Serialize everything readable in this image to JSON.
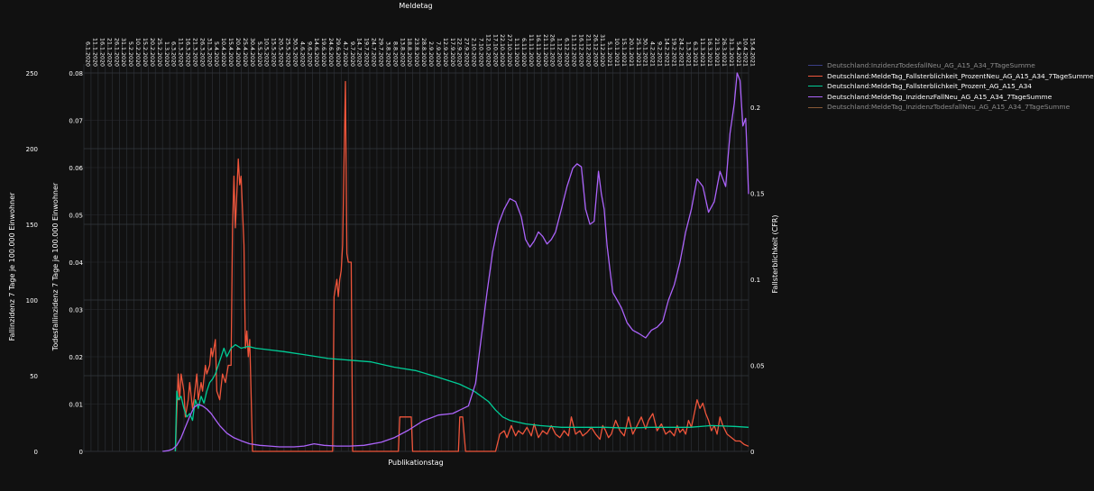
{
  "chart_data": {
    "type": "line",
    "title": "",
    "top_axis_label": "Meldetag",
    "xlabel": "Publikationstag",
    "ylabel_left_outer": "Fallinzidenz 7 Tage je 100.000 Einwohner",
    "ylabel_left_inner": "Todesfallinzidenz 7 Tage je 100.000 Einwohner",
    "ylabel_right": "Fallsterblichkeit (CFR)",
    "axes": {
      "y_left_outer": {
        "range": [
          0,
          250
        ],
        "ticks": [
          0,
          50,
          100,
          150,
          200,
          250
        ]
      },
      "y_left_inner": {
        "range": [
          0,
          0.08
        ],
        "ticks": [
          0,
          0.01,
          0.02,
          0.03,
          0.04,
          0.05,
          0.06,
          0.07,
          0.08
        ]
      },
      "y_right": {
        "range": [
          0,
          0.22
        ],
        "ticks": [
          0,
          0.05,
          0.1,
          0.15,
          0.2
        ],
        "tick_labels": [
          "0",
          "0.05",
          "0.1",
          "0.15",
          "0.2"
        ]
      },
      "x_top": {
        "start": "2020-01-06",
        "end": "2021-04-15",
        "ticks": [
          "6.1.2020",
          "11.1.2020",
          "16.1.2020",
          "21.1.2020",
          "26.1.2020",
          "31.1.2020",
          "5.2.2020",
          "10.2.2020",
          "15.2.2020",
          "20.2.2020",
          "25.2.2020",
          "1.3.2020",
          "6.3.2020",
          "11.3.2020",
          "16.3.2020",
          "21.3.2020",
          "26.3.2020",
          "31.3.2020",
          "5.4.2020",
          "10.4.2020",
          "15.4.2020",
          "20.4.2020",
          "25.4.2020",
          "30.4.2020",
          "5.5.2020",
          "10.5.2020",
          "15.5.2020",
          "20.5.2020",
          "25.5.2020",
          "30.5.2020",
          "4.6.2020",
          "9.6.2020",
          "14.6.2020",
          "19.6.2020",
          "24.6.2020",
          "29.6.2020",
          "4.7.2020",
          "9.7.2020",
          "14.7.2020",
          "19.7.2020",
          "24.7.2020",
          "29.7.2020",
          "3.8.2020",
          "8.8.2020",
          "13.8.2020",
          "18.8.2020",
          "23.8.2020",
          "28.8.2020",
          "2.9.2020",
          "7.9.2020",
          "12.9.2020",
          "17.9.2020",
          "22.9.2020",
          "27.9.2020",
          "2.10.2020",
          "7.10.2020",
          "12.10.2020",
          "17.10.2020",
          "22.10.2020",
          "27.10.2020",
          "1.11.2020",
          "6.11.2020",
          "11.11.2020",
          "16.11.2020",
          "21.11.2020",
          "26.11.2020",
          "1.12.2020",
          "6.12.2020",
          "11.12.2020",
          "16.12.2020",
          "21.12.2020",
          "26.12.2020",
          "31.12.2020",
          "5.1.2021",
          "10.1.2021",
          "15.1.2021",
          "20.1.2021",
          "25.1.2021",
          "30.1.2021",
          "4.2.2021",
          "9.2.2021",
          "14.2.2021",
          "19.2.2021",
          "24.2.2021",
          "1.3.2021",
          "6.3.2021",
          "11.3.2021",
          "16.3.2021",
          "21.3.2021",
          "26.3.2021",
          "31.3.2021",
          "5.4.2021",
          "10.4.2021",
          "15.4.2021"
        ]
      }
    },
    "legend_position": "top-right",
    "grid": true,
    "series": [
      {
        "name": "Deutschland:InzidenzTodesfallNeu_AG_A15_A34_7TageSumme",
        "color": "#636efa",
        "axis": "y_left_inner",
        "legend_dimmed": true,
        "x": [],
        "y": []
      },
      {
        "name": "Deutschland:MeldeTag_Fallsterblichkeit_ProzentNeu_AG_A15_A34_7TageSumme",
        "color": "#ef553b",
        "axis": "y_right",
        "legend_dimmed": false,
        "x": [
          "2020-03-10",
          "2020-03-12",
          "2020-03-13",
          "2020-03-14",
          "2020-03-16",
          "2020-03-17",
          "2020-03-19",
          "2020-03-20",
          "2020-03-22",
          "2020-03-23",
          "2020-03-25",
          "2020-03-26",
          "2020-03-28",
          "2020-03-29",
          "2020-03-31",
          "2020-04-01",
          "2020-04-03",
          "2020-04-04",
          "2020-04-05",
          "2020-04-07",
          "2020-04-08",
          "2020-04-10",
          "2020-04-12",
          "2020-04-14",
          "2020-04-16",
          "2020-04-18",
          "2020-04-19",
          "2020-04-20",
          "2020-04-21",
          "2020-04-22",
          "2020-04-23",
          "2020-04-24",
          "2020-04-25",
          "2020-04-26",
          "2020-04-27",
          "2020-04-28",
          "2020-04-29",
          "2020-04-30",
          "2020-05-01",
          "2020-05-03",
          "2020-05-05",
          "2020-05-06",
          "2020-05-08",
          "2020-05-09",
          "2020-05-10",
          "2020-05-11",
          "2020-05-12",
          "2020-05-13",
          "2020-05-14",
          "2020-05-15",
          "2020-05-16",
          "2020-05-17",
          "2020-05-18",
          "2020-05-20",
          "2020-05-22",
          "2020-05-24",
          "2020-05-25",
          "2020-05-26",
          "2020-05-27",
          "2020-05-28",
          "2020-05-29",
          "2020-05-30",
          "2020-06-01",
          "2020-06-05",
          "2020-06-10",
          "2020-06-15",
          "2020-06-20",
          "2020-06-25",
          "2020-06-28",
          "2020-06-29",
          "2020-06-30",
          "2020-07-01",
          "2020-07-02",
          "2020-07-03",
          "2020-07-04",
          "2020-07-05",
          "2020-07-06",
          "2020-07-07",
          "2020-07-08",
          "2020-07-09",
          "2020-07-10",
          "2020-07-11",
          "2020-07-12",
          "2020-07-15",
          "2020-07-20",
          "2020-07-25",
          "2020-07-30",
          "2020-08-05",
          "2020-08-10",
          "2020-08-13",
          "2020-08-14",
          "2020-08-15",
          "2020-08-18",
          "2020-08-20",
          "2020-08-21",
          "2020-08-22",
          "2020-08-23",
          "2020-08-25",
          "2020-09-01",
          "2020-09-10",
          "2020-09-20",
          "2020-09-24",
          "2020-09-25",
          "2020-09-27",
          "2020-09-29",
          "2020-10-01",
          "2020-10-02",
          "2020-10-04",
          "2020-10-06",
          "2020-10-08",
          "2020-10-10",
          "2020-10-13",
          "2020-10-17",
          "2020-10-20",
          "2020-10-23",
          "2020-10-26",
          "2020-10-28",
          "2020-10-31",
          "2020-11-03",
          "2020-11-05",
          "2020-11-08",
          "2020-11-11",
          "2020-11-14",
          "2020-11-16",
          "2020-11-19",
          "2020-11-22",
          "2020-11-25",
          "2020-11-28",
          "2020-12-01",
          "2020-12-04",
          "2020-12-07",
          "2020-12-10",
          "2020-12-12",
          "2020-12-15",
          "2020-12-18",
          "2020-12-20",
          "2020-12-23",
          "2020-12-26",
          "2020-12-29",
          "2021-01-01",
          "2021-01-03",
          "2021-01-05",
          "2021-01-07",
          "2021-01-09",
          "2021-01-12",
          "2021-01-15",
          "2021-01-18",
          "2021-01-21",
          "2021-01-24",
          "2021-01-27",
          "2021-01-30",
          "2021-02-02",
          "2021-02-04",
          "2021-02-07",
          "2021-02-10",
          "2021-02-13",
          "2021-02-16",
          "2021-02-19",
          "2021-02-22",
          "2021-02-24",
          "2021-02-26",
          "2021-02-28",
          "2021-03-02",
          "2021-03-04",
          "2021-03-06",
          "2021-03-08",
          "2021-03-10",
          "2021-03-12",
          "2021-03-14",
          "2021-03-16",
          "2021-03-18",
          "2021-03-20",
          "2021-03-22",
          "2021-03-24",
          "2021-03-26",
          "2021-03-28",
          "2021-03-31",
          "2021-04-03",
          "2021-04-06",
          "2021-04-09",
          "2021-04-12",
          "2021-04-15"
        ],
        "y": [
          0,
          0.045,
          0.03,
          0.045,
          0.035,
          0.02,
          0.03,
          0.04,
          0.025,
          0.03,
          0.045,
          0.03,
          0.04,
          0.035,
          0.05,
          0.045,
          0.05,
          0.06,
          0.055,
          0.065,
          0.035,
          0.03,
          0.045,
          0.04,
          0.05,
          0.05,
          0.13,
          0.16,
          0.13,
          0.15,
          0.17,
          0.155,
          0.16,
          0.14,
          0.12,
          0.06,
          0.07,
          0.055,
          0.065,
          0,
          0,
          0,
          0,
          0,
          0,
          0,
          0,
          0,
          0,
          0,
          0,
          0,
          0,
          0,
          0,
          0,
          0,
          0,
          0,
          0,
          0,
          0,
          0,
          0,
          0,
          0,
          0,
          0,
          0,
          0.09,
          0.095,
          0.1,
          0.09,
          0.1,
          0.105,
          0.12,
          0.17,
          0.215,
          0.115,
          0.11,
          0.11,
          0.11,
          0,
          0,
          0,
          0,
          0,
          0,
          0,
          0,
          0.02,
          0.02,
          0.02,
          0.02,
          0.02,
          0.02,
          0,
          0,
          0,
          0,
          0,
          0,
          0.02,
          0.02,
          0,
          0,
          0,
          0,
          0,
          0,
          0,
          0,
          0,
          0,
          0.01,
          0.012,
          0.008,
          0.015,
          0.009,
          0.012,
          0.01,
          0.014,
          0.009,
          0.016,
          0.008,
          0.012,
          0.01,
          0.015,
          0.01,
          0.008,
          0.012,
          0.009,
          0.02,
          0.01,
          0.012,
          0.009,
          0.011,
          0.014,
          0.01,
          0.007,
          0.015,
          0.012,
          0.008,
          0.01,
          0.018,
          0.012,
          0.009,
          0.02,
          0.01,
          0.015,
          0.02,
          0.013,
          0.018,
          0.022,
          0.012,
          0.016,
          0.01,
          0.012,
          0.009,
          0.015,
          0.011,
          0.013,
          0.01,
          0.018,
          0.014,
          0.022,
          0.03,
          0.025,
          0.028,
          0.022,
          0.018,
          0.012,
          0.015,
          0.01,
          0.02,
          0.015,
          0.01,
          0.008,
          0.006,
          0.006,
          0.004,
          0.003
        ]
      },
      {
        "name": "Deutschland:MeldeTag_Fallsterblichkeit_Prozent_AG_A15_A34",
        "color": "#00cc96",
        "axis": "y_right",
        "legend_dimmed": false,
        "x": [
          "2020-03-10",
          "2020-03-11",
          "2020-03-12",
          "2020-03-14",
          "2020-03-16",
          "2020-03-18",
          "2020-03-20",
          "2020-03-22",
          "2020-03-24",
          "2020-03-26",
          "2020-03-28",
          "2020-03-30",
          "2020-04-01",
          "2020-04-03",
          "2020-04-05",
          "2020-04-07",
          "2020-04-09",
          "2020-04-11",
          "2020-04-13",
          "2020-04-15",
          "2020-04-18",
          "2020-04-21",
          "2020-04-25",
          "2020-04-30",
          "2020-05-05",
          "2020-05-15",
          "2020-05-25",
          "2020-06-10",
          "2020-06-25",
          "2020-07-10",
          "2020-07-25",
          "2020-08-10",
          "2020-08-25",
          "2020-09-10",
          "2020-09-25",
          "2020-10-05",
          "2020-10-10",
          "2020-10-15",
          "2020-10-20",
          "2020-10-25",
          "2020-10-30",
          "2020-11-10",
          "2020-11-20",
          "2020-12-05",
          "2020-12-20",
          "2021-01-05",
          "2021-01-20",
          "2021-02-05",
          "2021-02-20",
          "2021-03-05",
          "2021-03-20",
          "2021-04-05",
          "2021-04-15"
        ],
        "y": [
          0,
          0.035,
          0.03,
          0.032,
          0.025,
          0.02,
          0.022,
          0.018,
          0.03,
          0.025,
          0.032,
          0.028,
          0.035,
          0.04,
          0.042,
          0.045,
          0.05,
          0.055,
          0.06,
          0.055,
          0.06,
          0.062,
          0.06,
          0.061,
          0.06,
          0.059,
          0.058,
          0.056,
          0.054,
          0.053,
          0.052,
          0.049,
          0.047,
          0.043,
          0.039,
          0.035,
          0.032,
          0.029,
          0.024,
          0.02,
          0.018,
          0.016,
          0.015,
          0.014,
          0.014,
          0.014,
          0.0135,
          0.014,
          0.014,
          0.014,
          0.015,
          0.0145,
          0.014
        ]
      },
      {
        "name": "Deutschland:MeldeTag_InzidenzFallNeu_AG_A15_A34_7TageSumme",
        "color": "#ab63fa",
        "axis": "y_left_outer",
        "legend_dimmed": false,
        "x": [
          "2020-03-01",
          "2020-03-05",
          "2020-03-08",
          "2020-03-11",
          "2020-03-14",
          "2020-03-17",
          "2020-03-20",
          "2020-03-23",
          "2020-03-26",
          "2020-03-29",
          "2020-04-01",
          "2020-04-04",
          "2020-04-07",
          "2020-04-10",
          "2020-04-15",
          "2020-04-20",
          "2020-04-25",
          "2020-05-01",
          "2020-05-08",
          "2020-05-15",
          "2020-05-22",
          "2020-06-01",
          "2020-06-08",
          "2020-06-15",
          "2020-06-22",
          "2020-07-01",
          "2020-07-10",
          "2020-07-20",
          "2020-08-01",
          "2020-08-10",
          "2020-08-20",
          "2020-08-30",
          "2020-09-10",
          "2020-09-20",
          "2020-10-01",
          "2020-10-06",
          "2020-10-10",
          "2020-10-14",
          "2020-10-18",
          "2020-10-22",
          "2020-10-26",
          "2020-10-30",
          "2020-11-03",
          "2020-11-07",
          "2020-11-10",
          "2020-11-13",
          "2020-11-16",
          "2020-11-19",
          "2020-11-22",
          "2020-11-25",
          "2020-11-28",
          "2020-12-01",
          "2020-12-05",
          "2020-12-09",
          "2020-12-13",
          "2020-12-16",
          "2020-12-19",
          "2020-12-22",
          "2020-12-25",
          "2020-12-28",
          "2020-12-31",
          "2021-01-02",
          "2021-01-04",
          "2021-01-06",
          "2021-01-08",
          "2021-01-10",
          "2021-01-13",
          "2021-01-16",
          "2021-01-20",
          "2021-01-24",
          "2021-01-28",
          "2021-02-02",
          "2021-02-06",
          "2021-02-10",
          "2021-02-14",
          "2021-02-18",
          "2021-02-22",
          "2021-02-26",
          "2021-03-02",
          "2021-03-06",
          "2021-03-10",
          "2021-03-14",
          "2021-03-18",
          "2021-03-22",
          "2021-03-26",
          "2021-03-30",
          "2021-04-02",
          "2021-04-05",
          "2021-04-07",
          "2021-04-09",
          "2021-04-11",
          "2021-04-13",
          "2021-04-15"
        ],
        "y": [
          0,
          0.5,
          1.5,
          4,
          9,
          16,
          23,
          29,
          31,
          30,
          28,
          25,
          21,
          17,
          12,
          9,
          7,
          5,
          4,
          3.5,
          3,
          3,
          3.5,
          5,
          4,
          3.5,
          3.5,
          4,
          6,
          9,
          14,
          20,
          24,
          25,
          30,
          45,
          75,
          105,
          132,
          150,
          160,
          167,
          165,
          155,
          140,
          135,
          139,
          145,
          142,
          137,
          140,
          145,
          160,
          175,
          187,
          190,
          188,
          160,
          150,
          152,
          185,
          170,
          160,
          136,
          120,
          105,
          100,
          95,
          85,
          80,
          78,
          75,
          80,
          82,
          86,
          100,
          110,
          125,
          145,
          160,
          180,
          175,
          158,
          165,
          185,
          175,
          210,
          230,
          250,
          245,
          215,
          220,
          170
        ]
      },
      {
        "name": "Deutschland:MeldeTag_InzidenzTodesfallNeu_AG_A15_A34_7TageSumme",
        "color": "#ffa15a",
        "axis": "y_left_inner",
        "legend_dimmed": true,
        "x": [],
        "y": []
      }
    ]
  }
}
